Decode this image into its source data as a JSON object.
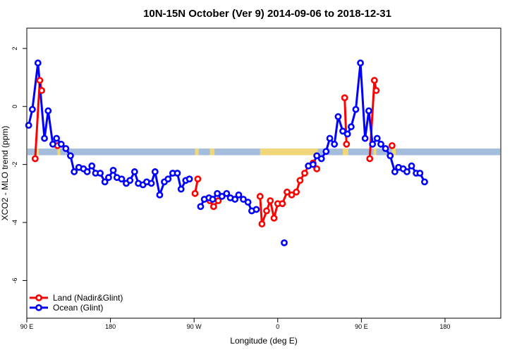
{
  "chart_data": {
    "type": "line",
    "title": "10N-15N October (Ver 9)   2014-09-06 to 2018-12-31",
    "xlabel": "Longitude (deg E)",
    "ylabel": "XCO2 - MLO trend (ppm)",
    "xlim": [
      90,
      600
    ],
    "ylim": [
      -7.3,
      2.7
    ],
    "x_ticks": [
      {
        "value": 90,
        "label": "90 E"
      },
      {
        "value": 180,
        "label": "180"
      },
      {
        "value": 270,
        "label": "90 W"
      },
      {
        "value": 360,
        "label": "0"
      },
      {
        "value": 450,
        "label": "90 E"
      },
      {
        "value": 540,
        "label": "180"
      }
    ],
    "y_ticks": [
      -6,
      -4,
      -2,
      0,
      2
    ],
    "legend_position": "bottom-left",
    "colors": {
      "land": "#ff0000",
      "ocean": "#0000ff",
      "band": "#a5bddd",
      "land_mass": "#f2d77a"
    },
    "series": [
      {
        "name": "Land (Nadir&Glint)",
        "color": "#ff0000",
        "points": [
          [
            99,
            -1.8
          ],
          [
            104,
            0.9
          ],
          [
            106,
            0.55
          ],
          [
            123,
            -1.35
          ],
          [
            271,
            -3.0
          ],
          [
            274,
            -2.5
          ],
          [
            287,
            -3.25
          ],
          [
            291,
            -3.45
          ],
          [
            296,
            -3.25
          ],
          [
            341,
            -3.1
          ],
          [
            343,
            -4.05
          ],
          [
            348,
            -3.6
          ],
          [
            352,
            -3.25
          ],
          [
            356,
            -3.85
          ],
          [
            360,
            -3.35
          ],
          [
            365,
            -3.35
          ],
          [
            370,
            -2.95
          ],
          [
            375,
            -3.05
          ],
          [
            380,
            -2.95
          ],
          [
            384,
            -2.55
          ],
          [
            389,
            -2.3
          ],
          [
            393,
            -2.05
          ],
          [
            398,
            -1.95
          ],
          [
            402,
            -2.15
          ],
          [
            432,
            0.3
          ],
          [
            434,
            -1.3
          ],
          [
            459,
            -1.8
          ],
          [
            464,
            0.9
          ],
          [
            466,
            0.55
          ],
          [
            483,
            -1.35
          ]
        ]
      },
      {
        "name": "Ocean (Glint)",
        "color": "#0000ff",
        "points": [
          [
            92,
            -0.65
          ],
          [
            96,
            -0.1
          ],
          [
            102,
            1.5
          ],
          [
            109,
            -1.1
          ],
          [
            113,
            -0.15
          ],
          [
            118,
            -1.3
          ],
          [
            122,
            -1.1
          ],
          [
            127,
            -1.3
          ],
          [
            132,
            -1.45
          ],
          [
            137,
            -1.7
          ],
          [
            141,
            -2.25
          ],
          [
            146,
            -2.1
          ],
          [
            151,
            -2.15
          ],
          [
            155,
            -2.25
          ],
          [
            160,
            -2.05
          ],
          [
            164,
            -2.3
          ],
          [
            169,
            -2.3
          ],
          [
            174,
            -2.6
          ],
          [
            178,
            -2.45
          ],
          [
            183,
            -2.2
          ],
          [
            187,
            -2.45
          ],
          [
            192,
            -2.5
          ],
          [
            197,
            -2.65
          ],
          [
            201,
            -2.55
          ],
          [
            206,
            -2.25
          ],
          [
            210,
            -2.65
          ],
          [
            215,
            -2.7
          ],
          [
            219,
            -2.6
          ],
          [
            224,
            -2.65
          ],
          [
            228,
            -2.25
          ],
          [
            233,
            -3.05
          ],
          [
            238,
            -2.6
          ],
          [
            242,
            -2.5
          ],
          [
            247,
            -2.3
          ],
          [
            252,
            -2.3
          ],
          [
            256,
            -2.85
          ],
          [
            261,
            -2.55
          ],
          [
            265,
            -2.5
          ],
          [
            277,
            -3.45
          ],
          [
            281,
            -3.2
          ],
          [
            286,
            -3.15
          ],
          [
            290,
            -3.2
          ],
          [
            295,
            -3.0
          ],
          [
            300,
            -3.1
          ],
          [
            305,
            -3.0
          ],
          [
            309,
            -3.15
          ],
          [
            314,
            -3.2
          ],
          [
            318,
            -3.05
          ],
          [
            323,
            -3.2
          ],
          [
            328,
            -3.3
          ],
          [
            332,
            -3.6
          ],
          [
            337,
            -3.55
          ],
          [
            367,
            -4.7
          ],
          [
            393,
            -2.05
          ],
          [
            398,
            -2.0
          ],
          [
            402,
            -1.7
          ],
          [
            407,
            -1.8
          ],
          [
            412,
            -1.55
          ],
          [
            416,
            -1.1
          ],
          [
            421,
            -1.3
          ],
          [
            425,
            -0.35
          ],
          [
            430,
            -0.85
          ],
          [
            435,
            -0.95
          ],
          [
            439,
            -0.7
          ],
          [
            444,
            -0.1
          ],
          [
            449,
            1.5
          ],
          [
            454,
            -1.1
          ],
          [
            458,
            -0.15
          ],
          [
            462,
            -1.3
          ],
          [
            467,
            -1.1
          ],
          [
            471,
            -1.3
          ],
          [
            476,
            -1.45
          ],
          [
            481,
            -1.7
          ],
          [
            486,
            -2.25
          ],
          [
            490,
            -2.1
          ],
          [
            495,
            -2.15
          ],
          [
            499,
            -2.25
          ],
          [
            504,
            -2.05
          ],
          [
            509,
            -2.3
          ],
          [
            513,
            -2.3
          ],
          [
            518,
            -2.6
          ]
        ]
      }
    ]
  }
}
